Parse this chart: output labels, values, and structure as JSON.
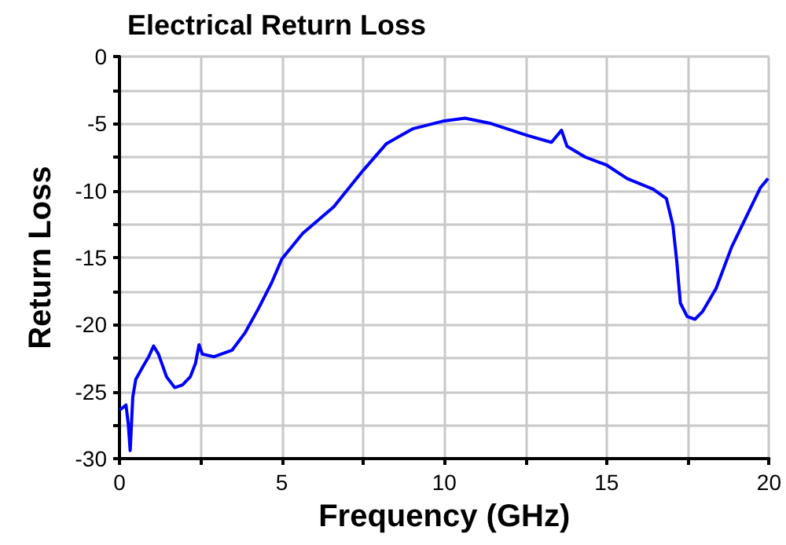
{
  "chart_data": {
    "type": "line",
    "title": "Electrical Return Loss",
    "xlabel": "Frequency (GHz)",
    "ylabel": "Return Loss",
    "x": [
      0,
      0.2,
      0.27,
      0.33,
      0.41,
      0.5,
      0.73,
      0.9,
      1.05,
      1.2,
      1.45,
      1.7,
      1.94,
      2.18,
      2.34,
      2.45,
      2.55,
      2.9,
      3.47,
      3.87,
      4.28,
      4.68,
      5.0,
      5.64,
      6.6,
      7.5,
      8.22,
      9.02,
      10,
      10.64,
      11.44,
      12.57,
      13.3,
      13.61,
      13.78,
      14.34,
      15,
      15.63,
      16.43,
      16.84,
      17.04,
      17.16,
      17.27,
      17.48,
      17.72,
      17.96,
      18.37,
      18.85,
      19.33,
      19.73,
      19.97
    ],
    "series": [
      {
        "color": "#0000ff",
        "values": [
          -26.4,
          -26,
          -27.4,
          -29.4,
          -25.4,
          -24.1,
          -23.1,
          -22.4,
          -21.6,
          -22.2,
          -23.9,
          -24.7,
          -24.5,
          -23.9,
          -22.9,
          -21.5,
          -22.2,
          -22.4,
          -21.9,
          -20.6,
          -18.8,
          -16.9,
          -15.1,
          -13.2,
          -11.2,
          -8.5,
          -6.5,
          -5.4,
          -4.8,
          -4.6,
          -5.0,
          -5.9,
          -6.4,
          -5.5,
          -6.7,
          -7.5,
          -8.1,
          -9.1,
          -9.9,
          -10.6,
          -12.6,
          -15.3,
          -18.4,
          -19.4,
          -19.6,
          -19.0,
          -17.3,
          -14.2,
          -11.8,
          -9.8,
          -9.1
        ]
      }
    ],
    "xlim": [
      0,
      20
    ],
    "xticks": [
      0,
      {
        "value": 2.5,
        "label": null
      },
      5,
      {
        "value": 7.5,
        "label": null
      },
      10,
      {
        "value": 12.5,
        "label": null
      },
      15,
      {
        "value": 17.5,
        "label": null
      },
      20
    ],
    "ylim": [
      -30,
      0
    ],
    "yticks": [
      -30,
      {
        "value": -27.5,
        "label": null
      },
      -25,
      {
        "value": -22.5,
        "label": null
      },
      -20,
      {
        "value": -17.5,
        "label": null
      },
      -15,
      {
        "value": -12.5,
        "label": null
      },
      -10,
      {
        "value": -7.5,
        "label": null
      },
      -5,
      {
        "value": -2.5,
        "label": null
      },
      0
    ],
    "grid": true,
    "marker": "none",
    "line_style": "solid"
  }
}
